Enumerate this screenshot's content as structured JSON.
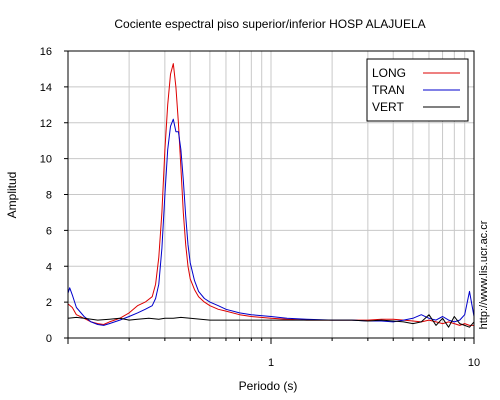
{
  "chart_data": {
    "type": "line",
    "title": "Cociente espectral piso superior/inferior  HOSP ALAJUELA",
    "xlabel": "Periodo (s)",
    "ylabel": "Amplitud",
    "xscale": "log",
    "xlim": [
      0.1,
      10
    ],
    "ylim": [
      0,
      16
    ],
    "x_ticks": [
      1,
      10
    ],
    "x_tick_labels": [
      "1",
      "10"
    ],
    "y_ticks": [
      0,
      2,
      4,
      6,
      8,
      10,
      12,
      14,
      16
    ],
    "y_tick_labels": [
      "0",
      "2",
      "4",
      "6",
      "8",
      "10",
      "12",
      "14",
      "16"
    ],
    "grid": true,
    "legend_position": "top-right",
    "side_note": "http://www.lis.ucr.ac.cr",
    "series": [
      {
        "name": "LONG",
        "color": "#dd0000",
        "x": [
          0.1,
          0.105,
          0.11,
          0.12,
          0.13,
          0.14,
          0.15,
          0.16,
          0.18,
          0.2,
          0.22,
          0.24,
          0.26,
          0.27,
          0.28,
          0.29,
          0.3,
          0.31,
          0.32,
          0.33,
          0.34,
          0.35,
          0.36,
          0.37,
          0.38,
          0.39,
          0.4,
          0.42,
          0.44,
          0.47,
          0.5,
          0.55,
          0.6,
          0.7,
          0.8,
          1.0,
          1.2,
          1.5,
          2.0,
          2.5,
          3.0,
          3.5,
          4.0,
          4.5,
          5.0,
          5.5,
          6.0,
          6.5,
          7.0,
          7.5,
          8.0,
          8.5,
          9.0,
          9.5,
          10.0
        ],
        "y": [
          1.9,
          1.7,
          1.3,
          1.1,
          0.9,
          0.8,
          0.75,
          0.9,
          1.1,
          1.4,
          1.8,
          2.0,
          2.3,
          3.0,
          4.5,
          7.0,
          10.5,
          13.0,
          14.7,
          15.3,
          14.0,
          12.0,
          9.5,
          7.0,
          5.2,
          4.0,
          3.3,
          2.7,
          2.3,
          2.0,
          1.8,
          1.6,
          1.5,
          1.3,
          1.2,
          1.1,
          1.05,
          1.0,
          1.0,
          1.0,
          1.0,
          1.05,
          1.05,
          1.0,
          0.95,
          0.9,
          1.0,
          0.9,
          0.8,
          0.9,
          0.8,
          0.7,
          0.8,
          0.7,
          0.7
        ]
      },
      {
        "name": "TRAN",
        "color": "#0000cc",
        "x": [
          0.1,
          0.102,
          0.105,
          0.11,
          0.12,
          0.13,
          0.14,
          0.15,
          0.16,
          0.18,
          0.2,
          0.22,
          0.24,
          0.26,
          0.27,
          0.28,
          0.29,
          0.3,
          0.31,
          0.32,
          0.33,
          0.34,
          0.35,
          0.36,
          0.37,
          0.38,
          0.39,
          0.4,
          0.42,
          0.44,
          0.47,
          0.5,
          0.55,
          0.6,
          0.7,
          0.8,
          1.0,
          1.2,
          1.5,
          2.0,
          2.5,
          3.0,
          3.5,
          4.0,
          4.5,
          5.0,
          5.5,
          6.0,
          6.5,
          7.0,
          7.5,
          8.0,
          8.5,
          9.0,
          9.5,
          10.0
        ],
        "y": [
          2.5,
          2.8,
          2.4,
          1.7,
          1.2,
          0.9,
          0.75,
          0.7,
          0.8,
          1.0,
          1.2,
          1.4,
          1.6,
          1.8,
          2.2,
          3.0,
          5.0,
          8.0,
          10.5,
          11.8,
          12.2,
          11.5,
          11.5,
          10.5,
          8.8,
          6.8,
          5.2,
          4.2,
          3.2,
          2.6,
          2.2,
          2.0,
          1.8,
          1.6,
          1.4,
          1.3,
          1.2,
          1.1,
          1.05,
          1.0,
          1.0,
          0.95,
          0.95,
          0.9,
          1.0,
          1.1,
          1.3,
          1.1,
          1.0,
          1.2,
          1.0,
          0.9,
          1.0,
          1.3,
          2.6,
          1.2
        ]
      },
      {
        "name": "VERT",
        "color": "#000000",
        "x": [
          0.1,
          0.11,
          0.12,
          0.14,
          0.16,
          0.18,
          0.2,
          0.22,
          0.25,
          0.28,
          0.3,
          0.33,
          0.36,
          0.4,
          0.45,
          0.5,
          0.6,
          0.7,
          0.8,
          1.0,
          1.2,
          1.5,
          2.0,
          2.5,
          3.0,
          3.5,
          4.0,
          4.5,
          5.0,
          5.5,
          6.0,
          6.5,
          7.0,
          7.5,
          8.0,
          8.5,
          9.0,
          9.5,
          10.0
        ],
        "y": [
          1.1,
          1.15,
          1.1,
          1.0,
          1.05,
          1.1,
          1.0,
          1.05,
          1.1,
          1.05,
          1.1,
          1.1,
          1.15,
          1.1,
          1.05,
          1.0,
          1.0,
          1.0,
          1.0,
          1.0,
          1.0,
          1.0,
          1.0,
          1.0,
          0.95,
          1.0,
          0.95,
          0.9,
          0.8,
          0.9,
          1.3,
          0.7,
          1.1,
          0.6,
          1.2,
          0.8,
          0.7,
          0.6,
          0.9
        ]
      }
    ]
  }
}
